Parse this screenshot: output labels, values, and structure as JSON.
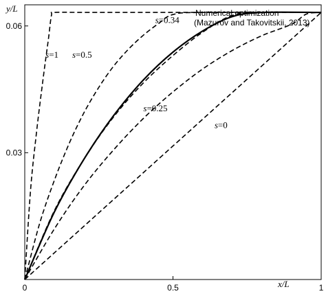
{
  "chart_data": {
    "type": "line",
    "title": "",
    "xlabel": "x/L",
    "ylabel": "y/L",
    "xlim": [
      0,
      1
    ],
    "ylim": [
      0,
      0.065
    ],
    "x_ticks": [
      0,
      0.5,
      1
    ],
    "x_tick_labels": [
      "0",
      "0.5",
      "1"
    ],
    "y_ticks": [
      0.03,
      0.06
    ],
    "y_tick_labels": [
      "0.03",
      "0.06"
    ],
    "grid": false,
    "annotation": {
      "line1": "Numerical optimization",
      "line2": "(Mazurov and Takovitskii, 2013)"
    },
    "series": [
      {
        "name": "s=1",
        "style": "dashed",
        "x": [
          0,
          0.02,
          0.04,
          0.06,
          0.08,
          0.09,
          0.1,
          0.2,
          0.4,
          0.6,
          0.8,
          1
        ],
        "y": [
          0,
          0.0215,
          0.035,
          0.0465,
          0.057,
          0.0625,
          0.0632,
          0.0632,
          0.0632,
          0.0632,
          0.0632,
          0.0632
        ]
      },
      {
        "name": "s=0.5",
        "style": "dashed",
        "x": [
          0,
          0.05,
          0.1,
          0.15,
          0.2,
          0.25,
          0.3,
          0.35,
          0.4,
          0.45,
          0.5,
          0.6,
          1
        ],
        "y": [
          0,
          0.0132,
          0.0235,
          0.0322,
          0.0395,
          0.0455,
          0.0505,
          0.0545,
          0.0578,
          0.0605,
          0.0627,
          0.0632,
          0.0632
        ]
      },
      {
        "name": "s=0.34",
        "style": "dashed",
        "x": [
          0,
          0.1,
          0.2,
          0.3,
          0.4,
          0.5,
          0.6,
          0.7,
          0.8,
          1
        ],
        "y": [
          0,
          0.0163,
          0.0285,
          0.0385,
          0.0465,
          0.053,
          0.0585,
          0.0625,
          0.0632,
          0.0632
        ]
      },
      {
        "name": "Numerical optimization",
        "style": "solid",
        "x": [
          0,
          0.1,
          0.2,
          0.3,
          0.4,
          0.5,
          0.6,
          0.7,
          0.8,
          1
        ],
        "y": [
          0,
          0.016,
          0.0285,
          0.0388,
          0.0472,
          0.0538,
          0.0588,
          0.0622,
          0.0632,
          0.0632
        ]
      },
      {
        "name": "s=0.25",
        "style": "dashed",
        "x": [
          0,
          0.1,
          0.2,
          0.3,
          0.4,
          0.5,
          0.6,
          0.7,
          0.8,
          0.9,
          0.95,
          1
        ],
        "y": [
          0,
          0.012,
          0.0222,
          0.0307,
          0.0381,
          0.0444,
          0.0498,
          0.0542,
          0.0577,
          0.0604,
          0.0628,
          0.0632
        ]
      },
      {
        "name": "s=0",
        "style": "dashed",
        "x": [
          0,
          1
        ],
        "y": [
          0,
          0.0632
        ]
      }
    ],
    "curve_labels": [
      {
        "s": "s",
        "rest": "=1",
        "x": 0.07,
        "y": 0.0525
      },
      {
        "s": "s",
        "rest": "=0.5",
        "x": 0.16,
        "y": 0.0525
      },
      {
        "s": "s",
        "rest": "=0.34",
        "x": 0.44,
        "y": 0.0607
      },
      {
        "s": "s",
        "rest": "=0.25",
        "x": 0.4,
        "y": 0.0398
      },
      {
        "s": "s",
        "rest": "=0",
        "x": 0.64,
        "y": 0.0358
      }
    ]
  }
}
